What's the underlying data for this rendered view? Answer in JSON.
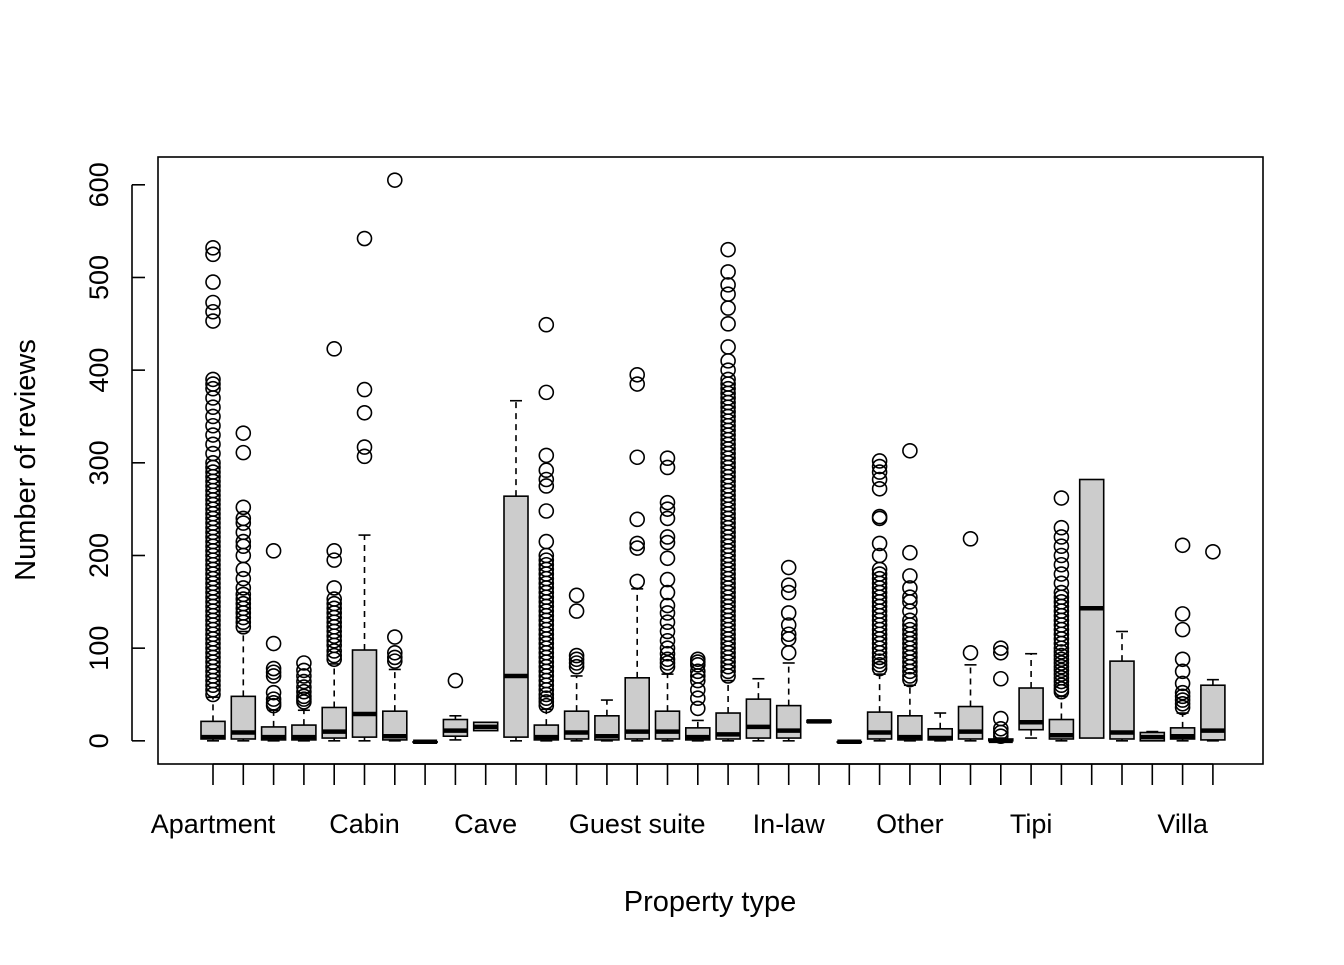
{
  "chart_data": {
    "type": "boxplot",
    "xlabel": "Property type",
    "ylabel": "Number of reviews",
    "ylim": [
      -25,
      630
    ],
    "y_ticks": [
      0,
      100,
      200,
      300,
      400,
      500,
      600
    ],
    "x_tick_labels": [
      {
        "index": 1,
        "label": "Apartment"
      },
      {
        "index": 6,
        "label": "Cabin"
      },
      {
        "index": 10,
        "label": "Cave"
      },
      {
        "index": 15,
        "label": "Guest suite"
      },
      {
        "index": 20,
        "label": "In-law"
      },
      {
        "index": 24,
        "label": "Other"
      },
      {
        "index": 28,
        "label": "Tipi"
      },
      {
        "index": 33,
        "label": "Villa"
      }
    ],
    "boxes": [
      {
        "q1": 2,
        "median": 4,
        "q3": 21,
        "lo": 0,
        "hi": 47,
        "outliers": [
          50,
          55,
          60,
          65,
          70,
          75,
          80,
          85,
          90,
          95,
          100,
          105,
          110,
          115,
          120,
          125,
          130,
          135,
          140,
          145,
          150,
          155,
          160,
          165,
          170,
          175,
          180,
          185,
          190,
          195,
          200,
          205,
          210,
          215,
          220,
          225,
          230,
          235,
          240,
          245,
          250,
          255,
          260,
          265,
          270,
          275,
          280,
          285,
          290,
          295,
          300,
          310,
          320,
          330,
          340,
          350,
          360,
          370,
          380,
          385,
          390,
          453,
          463,
          473,
          495,
          525,
          532
        ]
      },
      {
        "q1": 2,
        "median": 9,
        "q3": 48,
        "lo": 0,
        "hi": 118,
        "outliers": [
          123,
          128,
          133,
          138,
          143,
          148,
          153,
          158,
          165,
          175,
          185,
          200,
          210,
          215,
          225,
          235,
          240,
          252,
          311,
          332
        ]
      },
      {
        "q1": 1,
        "median": 4,
        "q3": 15,
        "lo": 0,
        "hi": 33,
        "outliers": [
          38,
          41,
          45,
          52,
          70,
          74,
          78,
          105,
          205
        ]
      },
      {
        "q1": 1,
        "median": 4,
        "q3": 17,
        "lo": 0,
        "hi": 33,
        "outliers": [
          42,
          45,
          48,
          53,
          58,
          64,
          70,
          76,
          84
        ]
      },
      {
        "q1": 3,
        "median": 10,
        "q3": 36,
        "lo": 0,
        "hi": 83,
        "outliers": [
          88,
          92,
          97,
          103,
          108,
          113,
          118,
          123,
          128,
          133,
          138,
          143,
          148,
          153,
          165,
          195,
          205,
          423
        ]
      },
      {
        "q1": 4,
        "median": 29,
        "q3": 98,
        "lo": 0,
        "hi": 222,
        "outliers": [
          307,
          317,
          354,
          379,
          542
        ]
      },
      {
        "q1": 1,
        "median": 5,
        "q3": 32,
        "lo": 0,
        "hi": 77,
        "outliers": [
          86,
          90,
          95,
          112,
          605
        ]
      },
      {
        "q1": -1,
        "median": -1,
        "q3": -1,
        "lo": -1,
        "hi": -1,
        "outliers": []
      },
      {
        "q1": 5,
        "median": 11,
        "q3": 23,
        "lo": 1,
        "hi": 27,
        "outliers": [
          65
        ]
      },
      {
        "q1": 11,
        "median": 15,
        "q3": 20,
        "lo": 11,
        "hi": 20,
        "outliers": []
      },
      {
        "q1": 4,
        "median": 70,
        "q3": 264,
        "lo": 0,
        "hi": 367,
        "outliers": []
      },
      {
        "q1": 1,
        "median": 4,
        "q3": 17,
        "lo": 0,
        "hi": 34,
        "outliers": [
          38,
          42,
          46,
          50,
          55,
          60,
          65,
          70,
          75,
          80,
          85,
          90,
          95,
          100,
          105,
          110,
          115,
          120,
          125,
          130,
          135,
          140,
          145,
          150,
          155,
          160,
          165,
          170,
          175,
          180,
          185,
          190,
          195,
          200,
          215,
          248,
          275,
          282,
          292,
          308,
          376,
          449
        ]
      },
      {
        "q1": 2,
        "median": 9,
        "q3": 32,
        "lo": 0,
        "hi": 70,
        "outliers": [
          80,
          84,
          88,
          92,
          140,
          157
        ]
      },
      {
        "q1": 1,
        "median": 5,
        "q3": 27,
        "lo": 0,
        "hi": 44,
        "outliers": []
      },
      {
        "q1": 2,
        "median": 10,
        "q3": 68,
        "lo": 0,
        "hi": 164,
        "outliers": [
          172,
          208,
          213,
          239,
          306,
          385,
          395
        ]
      },
      {
        "q1": 2,
        "median": 10,
        "q3": 32,
        "lo": 0,
        "hi": 72,
        "outliers": [
          80,
          84,
          88,
          94,
          100,
          108,
          118,
          128,
          138,
          146,
          160,
          174,
          197,
          214,
          220,
          240,
          250,
          257,
          295,
          305
        ]
      },
      {
        "q1": 1,
        "median": 4,
        "q3": 14,
        "lo": 0,
        "hi": 22,
        "outliers": [
          35,
          46,
          55,
          65,
          70,
          75,
          82,
          85,
          88
        ]
      },
      {
        "q1": 2,
        "median": 7,
        "q3": 30,
        "lo": 0,
        "hi": 65,
        "outliers": [
          70,
          75,
          80,
          85,
          90,
          95,
          100,
          105,
          110,
          115,
          120,
          125,
          130,
          135,
          140,
          145,
          150,
          155,
          160,
          165,
          170,
          175,
          180,
          185,
          190,
          195,
          200,
          205,
          210,
          215,
          220,
          225,
          230,
          235,
          240,
          245,
          250,
          255,
          260,
          265,
          270,
          275,
          280,
          285,
          290,
          295,
          300,
          305,
          310,
          315,
          320,
          325,
          330,
          335,
          340,
          345,
          350,
          355,
          360,
          365,
          370,
          375,
          380,
          385,
          390,
          400,
          410,
          425,
          450,
          467,
          482,
          492,
          506,
          530
        ]
      },
      {
        "q1": 3,
        "median": 15,
        "q3": 45,
        "lo": 0,
        "hi": 67,
        "outliers": []
      },
      {
        "q1": 3,
        "median": 11,
        "q3": 38,
        "lo": 0,
        "hi": 84,
        "outliers": [
          95,
          110,
          115,
          125,
          138,
          160,
          168,
          187
        ]
      },
      {
        "q1": 20,
        "median": 21,
        "q3": 22,
        "lo": 20,
        "hi": 22,
        "outliers": []
      },
      {
        "q1": -1,
        "median": -1,
        "q3": -1,
        "lo": -1,
        "hi": -1,
        "outliers": []
      },
      {
        "q1": 2,
        "median": 9,
        "q3": 31,
        "lo": 0,
        "hi": 72,
        "outliers": [
          78,
          82,
          86,
          90,
          95,
          100,
          105,
          110,
          115,
          120,
          125,
          130,
          135,
          140,
          145,
          150,
          155,
          160,
          165,
          170,
          175,
          180,
          185,
          200,
          213,
          240,
          242,
          272,
          282,
          290,
          296,
          302
        ]
      },
      {
        "q1": 1,
        "median": 4,
        "q3": 27,
        "lo": 0,
        "hi": 60,
        "outliers": [
          66,
          70,
          75,
          80,
          85,
          90,
          95,
          100,
          105,
          110,
          115,
          120,
          125,
          130,
          140,
          150,
          155,
          165,
          178,
          203,
          313
        ]
      },
      {
        "q1": 1,
        "median": 3,
        "q3": 13,
        "lo": 0,
        "hi": 30,
        "outliers": []
      },
      {
        "q1": 2,
        "median": 10,
        "q3": 37,
        "lo": 0,
        "hi": 82,
        "outliers": [
          95,
          218
        ]
      },
      {
        "q1": 0,
        "median": 0,
        "q3": 2,
        "lo": 0,
        "hi": 3,
        "outliers": [
          5,
          9,
          13,
          24,
          67,
          95,
          100
        ]
      },
      {
        "q1": 12,
        "median": 20,
        "q3": 57,
        "lo": 3,
        "hi": 94,
        "outliers": []
      },
      {
        "q1": 2,
        "median": 6,
        "q3": 23,
        "lo": 0,
        "hi": 48,
        "outliers": [
          53,
          56,
          60,
          64,
          68,
          72,
          76,
          80,
          84,
          88,
          92,
          96,
          100,
          105,
          110,
          115,
          120,
          125,
          130,
          135,
          140,
          145,
          150,
          155,
          160,
          170,
          180,
          190,
          200,
          210,
          220,
          230,
          262
        ]
      },
      {
        "q1": 3,
        "median": 143,
        "q3": 282,
        "lo": 3,
        "hi": 282,
        "outliers": []
      },
      {
        "q1": 2,
        "median": 9,
        "q3": 86,
        "lo": 0,
        "hi": 118,
        "outliers": []
      },
      {
        "q1": 0,
        "median": 4,
        "q3": 9,
        "lo": 0,
        "hi": 10,
        "outliers": []
      },
      {
        "q1": 2,
        "median": 5,
        "q3": 14,
        "lo": 0,
        "hi": 30,
        "outliers": [
          36,
          40,
          44,
          48,
          52,
          62,
          75,
          88,
          120,
          137,
          211
        ]
      },
      {
        "q1": 1,
        "median": 11,
        "q3": 60,
        "lo": 0,
        "hi": 66,
        "outliers": [
          204
        ]
      }
    ],
    "grid": false,
    "legend": "none"
  }
}
